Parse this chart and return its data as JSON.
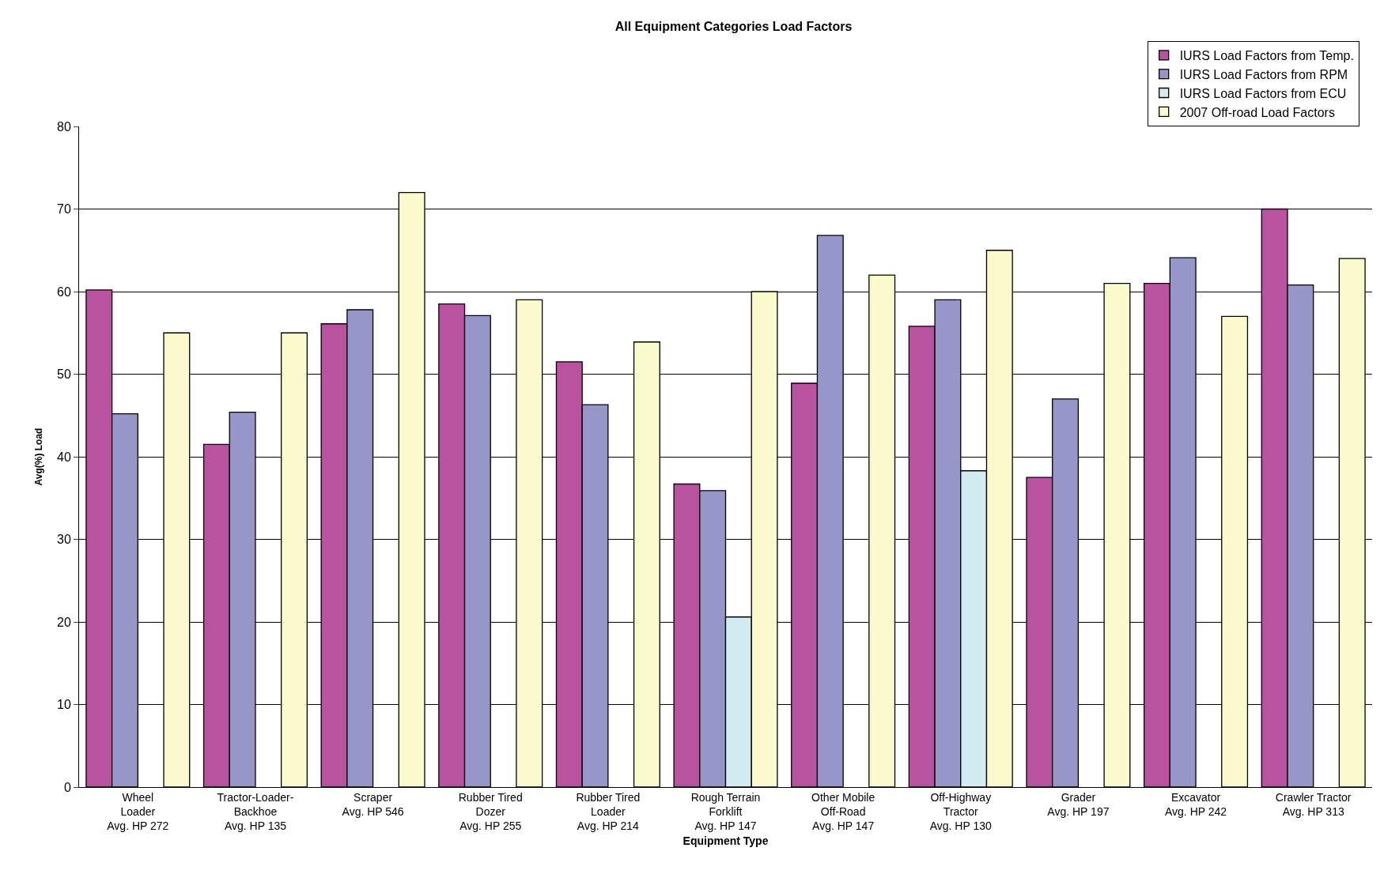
{
  "chart_data": {
    "type": "bar",
    "title": "All Equipment Categories Load Factors",
    "xlabel": "Equipment Type",
    "ylabel": "Avg(%) Load",
    "categories": [
      "Wheel\nLoader\nAvg. HP 272",
      "Tractor-Loader-\nBackhoe\nAvg. HP 135",
      "Scraper\nAvg. HP 546",
      "Rubber Tired\nDozer\nAvg. HP 255",
      "Rubber Tired\nLoader\nAvg. HP 214",
      "Rough Terrain\nForklift\nAvg. HP 147",
      "Other Mobile\nOff-Road\nAvg. HP 147",
      "Off-Highway\nTractor\nAvg. HP 130",
      "Grader\nAvg. HP 197",
      "Excavator\nAvg. HP 242",
      "Crawler Tractor\nAvg. HP 313"
    ],
    "series": [
      {
        "name": "IURS Load Factors from Temp.",
        "color": "#b9529f",
        "values": [
          60.2,
          41.5,
          56.1,
          58.5,
          51.5,
          36.7,
          48.9,
          55.8,
          37.5,
          61.0,
          70.0
        ]
      },
      {
        "name": "IURS Load Factors from RPM",
        "color": "#9696c8",
        "values": [
          45.2,
          45.4,
          57.8,
          57.1,
          46.3,
          35.9,
          66.8,
          59.0,
          47.0,
          64.1,
          60.8
        ]
      },
      {
        "name": "IURS Load Factors from ECU",
        "color": "#d2ecf1",
        "values": [
          null,
          null,
          null,
          null,
          null,
          20.6,
          null,
          38.3,
          null,
          null,
          null
        ]
      },
      {
        "name": "2007 Off-road Load Factors",
        "color": "#fafacc",
        "values": [
          55.0,
          55.0,
          72.0,
          59.0,
          53.9,
          60.0,
          62.0,
          65.0,
          61.0,
          57.0,
          64.0
        ]
      }
    ],
    "ylim": [
      0,
      80
    ],
    "yticks": [
      0,
      10,
      20,
      30,
      40,
      50,
      60,
      70,
      80
    ],
    "grid": "y",
    "legend": "top right"
  }
}
